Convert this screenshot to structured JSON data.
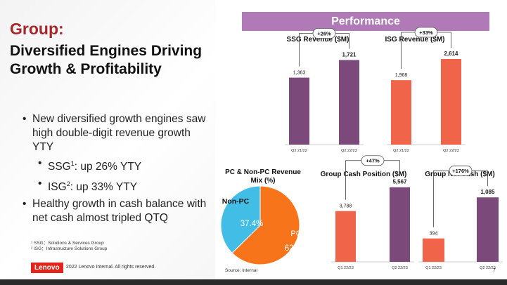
{
  "slide": {
    "title": "Group:",
    "subtitle": "Diversified Engines Driving Growth & Profitability",
    "bullet1": "New diversified growth engines saw high double-digit revenue growth YTY",
    "ssg_label": "SSG",
    "ssg_sup": "1",
    "ssg_text": ": up 26% YTY",
    "isg_label": "ISG",
    "isg_sup": "2",
    "isg_text": ": up 33% YTY",
    "bullet2": "Healthy growth in cash balance with net cash almost tripled QTQ",
    "note1": "¹ SSG：Solutions & Services Group",
    "note2": "² ISG：Infrastructure Solutions Group",
    "logo_text": "Lenovo",
    "copyright": "2022 Lenovo Internal. All rights reserved.",
    "section_header": "Performance",
    "source": "Source: Internal",
    "page_number": "7"
  },
  "colors": {
    "purple": "#7b4a7a",
    "orange_red": "#f0654a",
    "pie_blue": "#42bde6",
    "pie_orange": "#f7741b",
    "header_purple": "#b07ab7",
    "brand_red": "#a3282b",
    "lenovo_red": "#e1251b"
  },
  "chart_data": [
    {
      "type": "bar",
      "title": "SSG Revenue ($M)",
      "categories": [
        "Q2 21/22",
        "Q2 22/23"
      ],
      "values": [
        1363,
        1721
      ],
      "value_labels": [
        "1,363",
        "1,721"
      ],
      "colors": [
        "#7b4a7a",
        "#7b4a7a"
      ],
      "growth_label": "+26%",
      "ylim": [
        0,
        2000
      ]
    },
    {
      "type": "bar",
      "title": "ISG Revenue ($M)",
      "categories": [
        "Q2 21/22",
        "Q2 22/23"
      ],
      "values": [
        1968,
        2614
      ],
      "value_labels": [
        "1,968",
        "2,614"
      ],
      "colors": [
        "#f0654a",
        "#f0654a"
      ],
      "growth_label": "+33%",
      "ylim": [
        0,
        3000
      ]
    },
    {
      "type": "pie",
      "title": "PC & Non-PC Revenue Mix (%)",
      "slices": [
        {
          "label": "Non-PC",
          "value": 37.4,
          "value_label": "37.4%",
          "color": "#42bde6"
        },
        {
          "label": "PC",
          "value": 62.6,
          "value_label": "62.6%",
          "color": "#f7741b"
        }
      ]
    },
    {
      "type": "bar",
      "title": "Group Cash Position ($M)",
      "categories": [
        "Q1 22/23",
        "Q2 22/23"
      ],
      "values": [
        3788,
        5567
      ],
      "value_labels": [
        "3,788",
        "5,567"
      ],
      "colors": [
        "#f0654a",
        "#7b4a7a"
      ],
      "growth_label": "+47%",
      "ylim": [
        0,
        6600
      ]
    },
    {
      "type": "bar",
      "title": "Group Net Cash ($M)",
      "categories": [
        "Q1 22/23",
        "Q2 22/23"
      ],
      "values": [
        394,
        1085
      ],
      "value_labels": [
        "394",
        "1,085"
      ],
      "colors": [
        "#f0654a",
        "#7b4a7a"
      ],
      "growth_label": "+176%",
      "ylim": [
        0,
        1300
      ]
    }
  ]
}
